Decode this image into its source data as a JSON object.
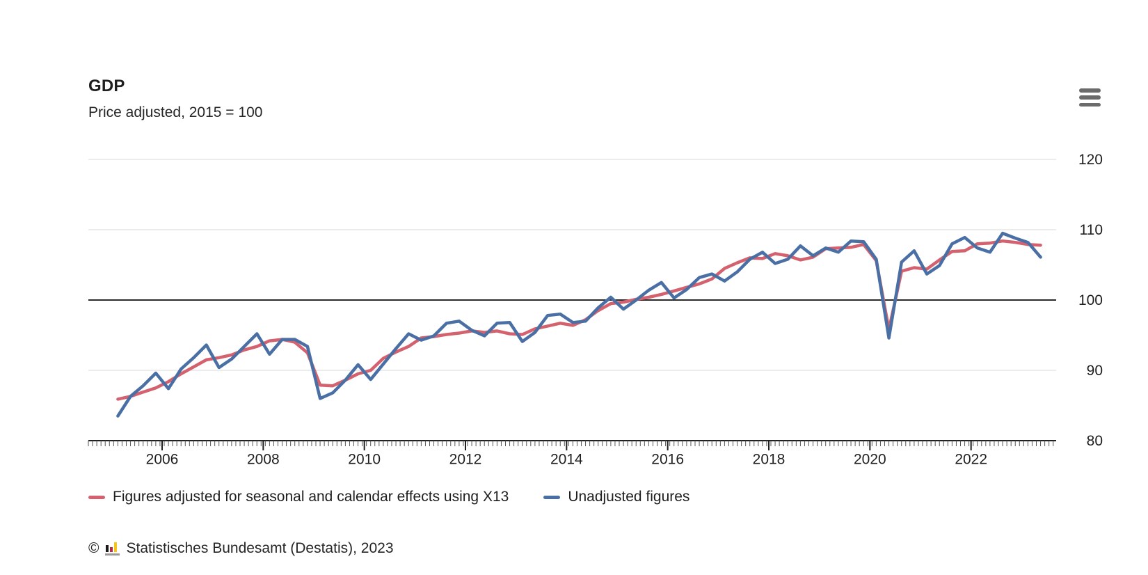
{
  "header": {
    "title": "GDP",
    "subtitle": "Price adjusted, 2015 = 100"
  },
  "menu": {
    "icon": "hamburger-menu-icon"
  },
  "chart_data": {
    "type": "line",
    "title": "GDP",
    "subtitle": "Price adjusted, 2015 = 100",
    "x_unit": "quarter",
    "quarters": [
      "2005-Q1",
      "2005-Q2",
      "2005-Q3",
      "2005-Q4",
      "2006-Q1",
      "2006-Q2",
      "2006-Q3",
      "2006-Q4",
      "2007-Q1",
      "2007-Q2",
      "2007-Q3",
      "2007-Q4",
      "2008-Q1",
      "2008-Q2",
      "2008-Q3",
      "2008-Q4",
      "2009-Q1",
      "2009-Q2",
      "2009-Q3",
      "2009-Q4",
      "2010-Q1",
      "2010-Q2",
      "2010-Q3",
      "2010-Q4",
      "2011-Q1",
      "2011-Q2",
      "2011-Q3",
      "2011-Q4",
      "2012-Q1",
      "2012-Q2",
      "2012-Q3",
      "2012-Q4",
      "2013-Q1",
      "2013-Q2",
      "2013-Q3",
      "2013-Q4",
      "2014-Q1",
      "2014-Q2",
      "2014-Q3",
      "2014-Q4",
      "2015-Q1",
      "2015-Q2",
      "2015-Q3",
      "2015-Q4",
      "2016-Q1",
      "2016-Q2",
      "2016-Q3",
      "2016-Q4",
      "2017-Q1",
      "2017-Q2",
      "2017-Q3",
      "2017-Q4",
      "2018-Q1",
      "2018-Q2",
      "2018-Q3",
      "2018-Q4",
      "2019-Q1",
      "2019-Q2",
      "2019-Q3",
      "2019-Q4",
      "2020-Q1",
      "2020-Q2",
      "2020-Q3",
      "2020-Q4",
      "2021-Q1",
      "2021-Q2",
      "2021-Q3",
      "2021-Q4",
      "2022-Q1",
      "2022-Q2",
      "2022-Q3",
      "2022-Q4",
      "2023-Q1",
      "2023-Q2"
    ],
    "series": [
      {
        "name": "Figures adjusted for seasonal and calendar effects using X13",
        "color": "#d4626e",
        "values": [
          85.9,
          86.3,
          86.9,
          87.5,
          88.4,
          89.5,
          90.5,
          91.5,
          91.8,
          92.2,
          92.9,
          93.4,
          94.2,
          94.4,
          94.0,
          92.5,
          87.9,
          87.8,
          88.6,
          89.5,
          90.0,
          91.7,
          92.6,
          93.4,
          94.6,
          94.8,
          95.1,
          95.3,
          95.6,
          95.4,
          95.6,
          95.2,
          95.1,
          95.9,
          96.3,
          96.7,
          96.4,
          97.2,
          98.5,
          99.5,
          99.7,
          100.1,
          100.4,
          100.8,
          101.3,
          101.8,
          102.3,
          103.0,
          104.5,
          105.3,
          106.0,
          105.9,
          106.6,
          106.3,
          105.7,
          106.1,
          107.3,
          107.4,
          107.5,
          107.9,
          105.6,
          95.8,
          104.1,
          104.6,
          104.4,
          105.7,
          106.9,
          107.0,
          108.0,
          108.1,
          108.4,
          108.2,
          107.9,
          107.8
        ]
      },
      {
        "name": "Unadjusted figures",
        "color": "#4a6fa5",
        "values": [
          83.5,
          86.3,
          87.8,
          89.6,
          87.4,
          90.2,
          91.8,
          93.6,
          90.4,
          91.6,
          93.4,
          95.2,
          92.3,
          94.4,
          94.4,
          93.4,
          86.0,
          86.8,
          88.6,
          90.8,
          88.7,
          90.9,
          93.1,
          95.2,
          94.3,
          94.9,
          96.7,
          97.0,
          95.7,
          94.9,
          96.7,
          96.8,
          94.1,
          95.4,
          97.8,
          98.0,
          96.8,
          97.0,
          98.9,
          100.4,
          98.7,
          100.0,
          101.4,
          102.5,
          100.3,
          101.5,
          103.2,
          103.7,
          102.7,
          104.0,
          105.8,
          106.8,
          105.2,
          105.8,
          107.7,
          106.3,
          107.4,
          106.8,
          108.4,
          108.3,
          105.8,
          94.6,
          105.4,
          107.0,
          103.7,
          104.9,
          108.0,
          108.9,
          107.4,
          106.8,
          109.5,
          108.8,
          108.2,
          106.1
        ]
      }
    ],
    "ylim": [
      80,
      122
    ],
    "y_ticks": [
      80,
      90,
      100,
      110,
      120
    ],
    "baseline_value": 100,
    "x_tick_years_labeled": [
      "2006",
      "2008",
      "2010",
      "2012",
      "2014",
      "2016",
      "2018",
      "2020",
      "2022"
    ],
    "minor_ticks": "monthly",
    "grid": "horizontal-only",
    "legend_position": "bottom"
  },
  "legend": {
    "items": [
      {
        "label": "Figures adjusted for seasonal and calendar effects using X13",
        "color": "#d4626e"
      },
      {
        "label": "Unadjusted figures",
        "color": "#4a6fa5"
      }
    ]
  },
  "footer": {
    "copyright_symbol": "©",
    "logo": "destatis-bar-chart-logo",
    "text": "Statistisches Bundesamt (Destatis), 2023"
  },
  "colors": {
    "adjusted_line": "#d4626e",
    "unadjusted_line": "#4a6fa5",
    "grid_line": "#d9d9d9",
    "baseline_100": "#2b2b2b",
    "axis": "#1f1f1f",
    "minor_tick": "#555555",
    "text": "#1f1f1f",
    "menu_icon": "#6b6b6b"
  }
}
